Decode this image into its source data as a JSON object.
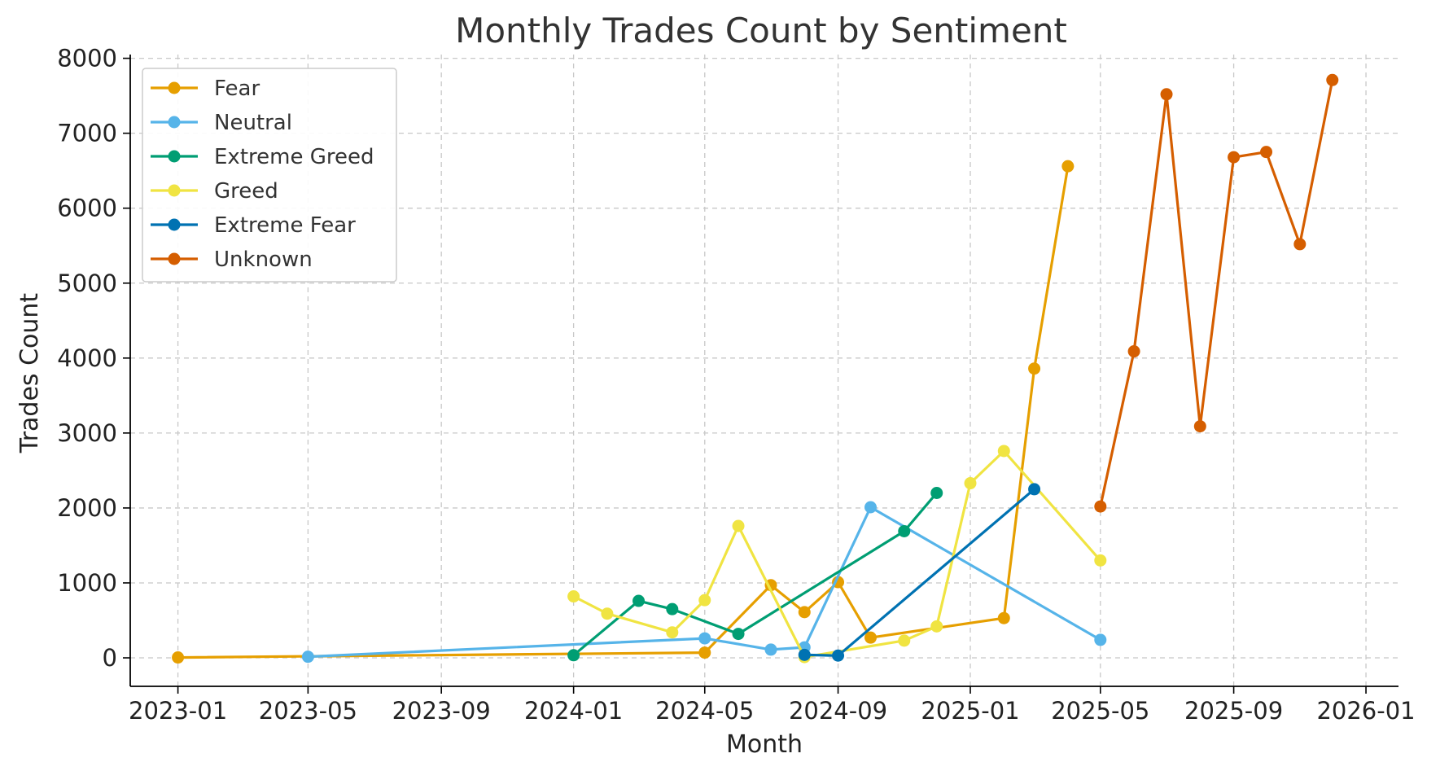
{
  "chart_data": {
    "type": "line",
    "title": "Monthly Trades Count by Sentiment",
    "xlabel": "Month",
    "ylabel": "Trades Count",
    "xlim": [
      "2022-11-18",
      "2026-01-31"
    ],
    "ylim": [
      -380,
      8050
    ],
    "x_ticks": [
      "2023-01",
      "2023-05",
      "2023-09",
      "2024-01",
      "2024-05",
      "2024-09",
      "2025-01",
      "2025-05",
      "2025-09",
      "2026-01"
    ],
    "y_ticks": [
      0,
      1000,
      2000,
      3000,
      4000,
      5000,
      6000,
      7000,
      8000
    ],
    "grid": true,
    "legend_position": "top-left",
    "series": [
      {
        "name": "Fear",
        "color": "#E69F00",
        "points": [
          {
            "x": "2023-01",
            "y": 5
          },
          {
            "x": "2024-05",
            "y": 70
          },
          {
            "x": "2024-07",
            "y": 970
          },
          {
            "x": "2024-08",
            "y": 610
          },
          {
            "x": "2024-09",
            "y": 1010
          },
          {
            "x": "2024-10",
            "y": 270
          },
          {
            "x": "2025-02",
            "y": 530
          },
          {
            "x": "2025-03",
            "y": 3860
          },
          {
            "x": "2025-04",
            "y": 6560
          }
        ]
      },
      {
        "name": "Neutral",
        "color": "#56B4E9",
        "points": [
          {
            "x": "2023-05",
            "y": 15
          },
          {
            "x": "2024-05",
            "y": 260
          },
          {
            "x": "2024-07",
            "y": 110
          },
          {
            "x": "2024-08",
            "y": 140
          },
          {
            "x": "2024-10",
            "y": 2010
          },
          {
            "x": "2025-05",
            "y": 240
          }
        ]
      },
      {
        "name": "Extreme Greed",
        "color": "#009E73",
        "points": [
          {
            "x": "2024-01",
            "y": 35
          },
          {
            "x": "2024-03",
            "y": 760
          },
          {
            "x": "2024-04",
            "y": 650
          },
          {
            "x": "2024-06",
            "y": 320
          },
          {
            "x": "2024-11",
            "y": 1690
          },
          {
            "x": "2024-12",
            "y": 2200
          }
        ]
      },
      {
        "name": "Greed",
        "color": "#F0E442",
        "points": [
          {
            "x": "2024-01",
            "y": 820
          },
          {
            "x": "2024-02",
            "y": 590
          },
          {
            "x": "2024-04",
            "y": 340
          },
          {
            "x": "2024-05",
            "y": 770
          },
          {
            "x": "2024-06",
            "y": 1760
          },
          {
            "x": "2024-08",
            "y": 10
          },
          {
            "x": "2024-11",
            "y": 230
          },
          {
            "x": "2024-12",
            "y": 420
          },
          {
            "x": "2025-01",
            "y": 2330
          },
          {
            "x": "2025-02",
            "y": 2760
          },
          {
            "x": "2025-05",
            "y": 1300
          }
        ]
      },
      {
        "name": "Extreme Fear",
        "color": "#0072B2",
        "points": [
          {
            "x": "2024-08",
            "y": 40
          },
          {
            "x": "2024-09",
            "y": 30
          },
          {
            "x": "2025-03",
            "y": 2250
          }
        ]
      },
      {
        "name": "Unknown",
        "color": "#D55E00",
        "points": [
          {
            "x": "2025-05",
            "y": 2020
          },
          {
            "x": "2025-06",
            "y": 4090
          },
          {
            "x": "2025-07",
            "y": 7520
          },
          {
            "x": "2025-08",
            "y": 3090
          },
          {
            "x": "2025-09",
            "y": 6680
          },
          {
            "x": "2025-10",
            "y": 6750
          },
          {
            "x": "2025-11",
            "y": 5520
          },
          {
            "x": "2025-12",
            "y": 7710
          }
        ]
      }
    ]
  }
}
